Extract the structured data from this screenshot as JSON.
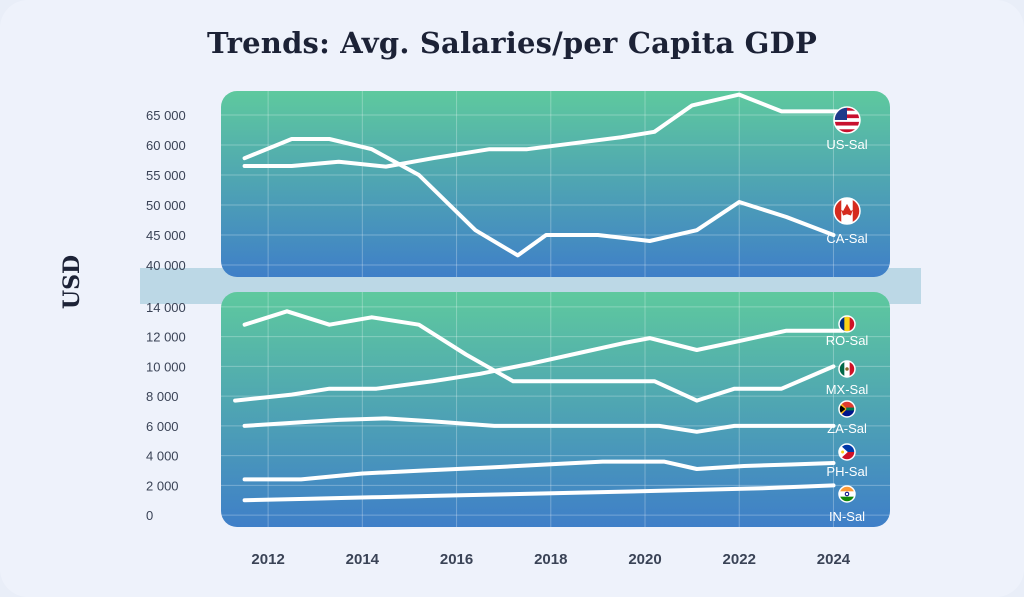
{
  "chart_data": {
    "type": "line",
    "title": "Trends: Avg. Salaries/per Capita GDP",
    "ylabel": "USD",
    "xlabel": "",
    "x_ticks": [
      "2012",
      "2014",
      "2016",
      "2018",
      "2020",
      "2022",
      "2024"
    ],
    "panels": [
      {
        "name": "upper",
        "ylim": [
          38000,
          69000
        ],
        "y_ticks": [
          40000,
          45000,
          50000,
          55000,
          60000,
          65000
        ],
        "y_tick_labels": [
          "40 000",
          "45 000",
          "50 000",
          "55 000",
          "60 000",
          "65 000"
        ],
        "series": [
          {
            "name": "US-Sal",
            "flag": "us-flag-icon",
            "points": [
              [
                2011.5,
                56500
              ],
              [
                2012.5,
                56500
              ],
              [
                2013.5,
                57200
              ],
              [
                2014.5,
                56400
              ],
              [
                2015.5,
                57800
              ],
              [
                2016.7,
                59300
              ],
              [
                2017.5,
                59300
              ],
              [
                2018.5,
                60300
              ],
              [
                2019.5,
                61300
              ],
              [
                2020.2,
                62200
              ],
              [
                2021.0,
                66600
              ],
              [
                2022.0,
                68400
              ],
              [
                2022.9,
                65600
              ],
              [
                2024.2,
                65600
              ]
            ]
          },
          {
            "name": "CA-Sal",
            "flag": "ca-flag-icon",
            "points": [
              [
                2011.5,
                57800
              ],
              [
                2012.5,
                61000
              ],
              [
                2013.3,
                61000
              ],
              [
                2014.2,
                59300
              ],
              [
                2015.2,
                55000
              ],
              [
                2016.4,
                45800
              ],
              [
                2017.3,
                41600
              ],
              [
                2017.9,
                45000
              ],
              [
                2019.0,
                45000
              ],
              [
                2020.1,
                44000
              ],
              [
                2021.1,
                45800
              ],
              [
                2022.0,
                50500
              ],
              [
                2023.0,
                48000
              ],
              [
                2024.0,
                45000
              ]
            ]
          }
        ]
      },
      {
        "name": "lower",
        "ylim": [
          -800,
          15000
        ],
        "y_ticks": [
          0,
          2000,
          4000,
          6000,
          8000,
          10000,
          12000,
          14000
        ],
        "y_tick_labels": [
          "0",
          "2 000",
          "4 000",
          "6 000",
          "8 000",
          "10 000",
          "12 000",
          "14 000"
        ],
        "series": [
          {
            "name": "RO-Sal",
            "flag": "ro-flag-icon",
            "points": [
              [
                2011.3,
                7700
              ],
              [
                2012.5,
                8100
              ],
              [
                2013.3,
                8500
              ],
              [
                2014.3,
                8500
              ],
              [
                2015.5,
                9000
              ],
              [
                2016.5,
                9500
              ],
              [
                2017.6,
                10200
              ],
              [
                2018.6,
                10900
              ],
              [
                2019.6,
                11600
              ],
              [
                2020.1,
                11900
              ],
              [
                2021.1,
                11100
              ],
              [
                2022.0,
                11700
              ],
              [
                2023.0,
                12400
              ],
              [
                2024.2,
                12400
              ]
            ]
          },
          {
            "name": "MX-Sal",
            "flag": "mx-flag-icon",
            "points": [
              [
                2011.5,
                12800
              ],
              [
                2012.4,
                13700
              ],
              [
                2013.3,
                12800
              ],
              [
                2014.2,
                13300
              ],
              [
                2015.2,
                12800
              ],
              [
                2016.2,
                10800
              ],
              [
                2017.2,
                9000
              ],
              [
                2018.4,
                9000
              ],
              [
                2019.5,
                9000
              ],
              [
                2020.2,
                9000
              ],
              [
                2021.1,
                7700
              ],
              [
                2021.9,
                8500
              ],
              [
                2022.9,
                8500
              ],
              [
                2024.0,
                10000
              ]
            ]
          },
          {
            "name": "ZA-Sal",
            "flag": "za-flag-icon",
            "points": [
              [
                2011.5,
                6000
              ],
              [
                2012.5,
                6200
              ],
              [
                2013.5,
                6400
              ],
              [
                2014.5,
                6500
              ],
              [
                2015.5,
                6300
              ],
              [
                2016.8,
                6000
              ],
              [
                2018.0,
                6000
              ],
              [
                2019.2,
                6000
              ],
              [
                2020.3,
                6000
              ],
              [
                2021.1,
                5600
              ],
              [
                2021.9,
                6000
              ],
              [
                2023.0,
                6000
              ],
              [
                2024.0,
                6000
              ]
            ]
          },
          {
            "name": "PH-Sal",
            "flag": "ph-flag-icon",
            "points": [
              [
                2011.5,
                2400
              ],
              [
                2012.7,
                2400
              ],
              [
                2014.0,
                2800
              ],
              [
                2015.3,
                3000
              ],
              [
                2016.7,
                3200
              ],
              [
                2017.9,
                3400
              ],
              [
                2019.1,
                3600
              ],
              [
                2020.4,
                3600
              ],
              [
                2021.1,
                3100
              ],
              [
                2022.1,
                3300
              ],
              [
                2023.1,
                3400
              ],
              [
                2024.0,
                3500
              ]
            ]
          },
          {
            "name": "IN-Sal",
            "flag": "in-flag-icon",
            "points": [
              [
                2011.5,
                1000
              ],
              [
                2012.9,
                1100
              ],
              [
                2014.2,
                1200
              ],
              [
                2015.6,
                1300
              ],
              [
                2017.1,
                1400
              ],
              [
                2018.5,
                1500
              ],
              [
                2019.9,
                1600
              ],
              [
                2021.2,
                1700
              ],
              [
                2022.5,
                1800
              ],
              [
                2024.0,
                2000
              ]
            ]
          }
        ]
      }
    ]
  },
  "colors": {
    "panel_top": "#5ec99e",
    "panel_bottom": "#3f7fc8",
    "line": "#ffffff",
    "tick_text": "#3a4356",
    "title_text": "#1c2236",
    "axis_break": "#b3d4e2"
  }
}
